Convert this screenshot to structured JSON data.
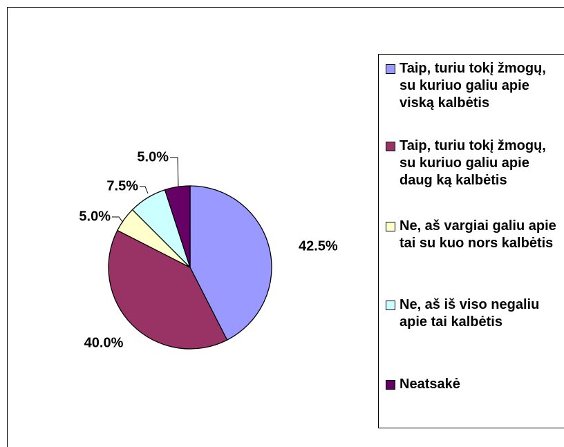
{
  "chart_data": {
    "type": "pie",
    "categories": [
      "Taip, turiu tokį žmogų, su kuriuo galiu apie viską kalbėtis",
      "Taip, turiu tokį žmogų, su kuriuo galiu apie daug ką kalbėtis",
      "Ne, aš vargiai galiu apie tai su kuo nors kalbėtis",
      "Ne, aš iš viso negaliu apie tai kalbėtis",
      "Neatsakė"
    ],
    "values": [
      42.5,
      40.0,
      5.0,
      7.5,
      5.0
    ],
    "value_labels": [
      "42.5%",
      "40.0%",
      "5.0%",
      "7.5%",
      "5.0%"
    ],
    "colors": [
      "#9999ff",
      "#993366",
      "#ffffcc",
      "#ccffff",
      "#660066"
    ]
  }
}
